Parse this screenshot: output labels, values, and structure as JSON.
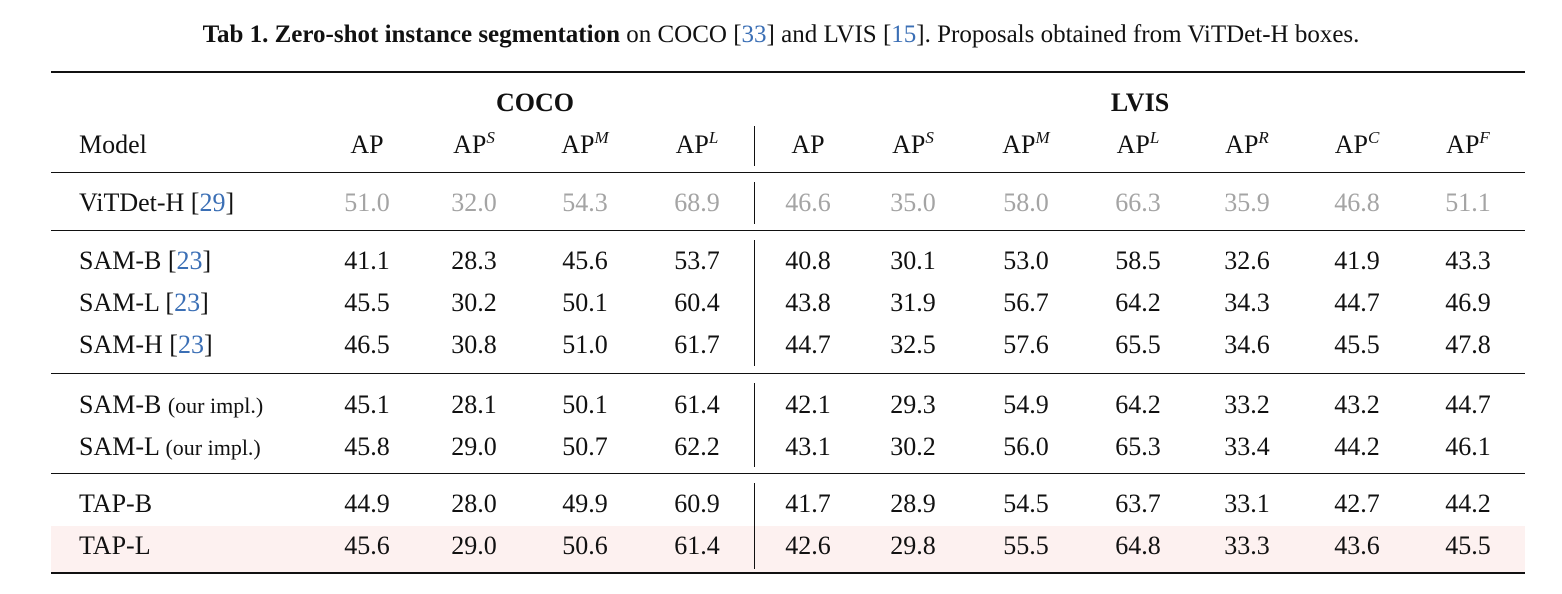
{
  "caption": {
    "bold": "Tab 1. Zero-shot instance segmentation",
    "t1": " on COCO [",
    "c1": "33",
    "t2": "] and LVIS [",
    "c2": "15",
    "t3": "]. Proposals obtained from ViTDet-H boxes."
  },
  "groups": {
    "coco": "COCO",
    "lvis": "LVIS"
  },
  "header": {
    "model": "Model",
    "cols": [
      {
        "base": "AP",
        "sup": ""
      },
      {
        "base": "AP",
        "sup": "S"
      },
      {
        "base": "AP",
        "sup": "M"
      },
      {
        "base": "AP",
        "sup": "L"
      },
      {
        "base": "AP",
        "sup": ""
      },
      {
        "base": "AP",
        "sup": "S"
      },
      {
        "base": "AP",
        "sup": "M"
      },
      {
        "base": "AP",
        "sup": "L"
      },
      {
        "base": "AP",
        "sup": "R"
      },
      {
        "base": "AP",
        "sup": "C"
      },
      {
        "base": "AP",
        "sup": "F"
      }
    ]
  },
  "rows": [
    {
      "name": "ViTDet-H [",
      "cite": "29",
      "close": "]",
      "note": "",
      "gray": true,
      "highlight": false,
      "values": [
        "51.0",
        "32.0",
        "54.3",
        "68.9",
        "46.6",
        "35.0",
        "58.0",
        "66.3",
        "35.9",
        "46.8",
        "51.1"
      ]
    },
    {
      "name": "SAM-B [",
      "cite": "23",
      "close": "]",
      "note": "",
      "gray": false,
      "highlight": false,
      "values": [
        "41.1",
        "28.3",
        "45.6",
        "53.7",
        "40.8",
        "30.1",
        "53.0",
        "58.5",
        "32.6",
        "41.9",
        "43.3"
      ]
    },
    {
      "name": "SAM-L [",
      "cite": "23",
      "close": "]",
      "note": "",
      "gray": false,
      "highlight": false,
      "values": [
        "45.5",
        "30.2",
        "50.1",
        "60.4",
        "43.8",
        "31.9",
        "56.7",
        "64.2",
        "34.3",
        "44.7",
        "46.9"
      ]
    },
    {
      "name": "SAM-H [",
      "cite": "23",
      "close": "]",
      "note": "",
      "gray": false,
      "highlight": false,
      "values": [
        "46.5",
        "30.8",
        "51.0",
        "61.7",
        "44.7",
        "32.5",
        "57.6",
        "65.5",
        "34.6",
        "45.5",
        "47.8"
      ]
    },
    {
      "name": "SAM-B",
      "cite": "",
      "close": "",
      "note": "(our impl.)",
      "gray": false,
      "highlight": false,
      "values": [
        "45.1",
        "28.1",
        "50.1",
        "61.4",
        "42.1",
        "29.3",
        "54.9",
        "64.2",
        "33.2",
        "43.2",
        "44.7"
      ]
    },
    {
      "name": "SAM-L",
      "cite": "",
      "close": "",
      "note": "(our impl.)",
      "gray": false,
      "highlight": false,
      "values": [
        "45.8",
        "29.0",
        "50.7",
        "62.2",
        "43.1",
        "30.2",
        "56.0",
        "65.3",
        "33.4",
        "44.2",
        "46.1"
      ]
    },
    {
      "name": "TAP-B",
      "cite": "",
      "close": "",
      "note": "",
      "gray": false,
      "highlight": false,
      "values": [
        "44.9",
        "28.0",
        "49.9",
        "60.9",
        "41.7",
        "28.9",
        "54.5",
        "63.7",
        "33.1",
        "42.7",
        "44.2"
      ]
    },
    {
      "name": "TAP-L",
      "cite": "",
      "close": "",
      "note": "",
      "gray": false,
      "highlight": true,
      "values": [
        "45.6",
        "29.0",
        "50.6",
        "61.4",
        "42.6",
        "29.8",
        "55.5",
        "64.8",
        "33.3",
        "43.6",
        "45.5"
      ]
    }
  ],
  "colors": {
    "cite": "#3b6fb5",
    "gray": "#a4a4a4",
    "highlight": "#fdf1f0"
  }
}
